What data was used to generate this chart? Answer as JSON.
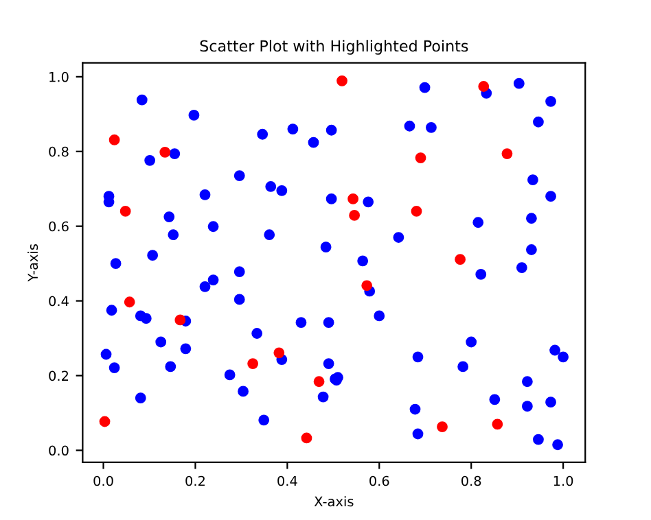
{
  "chart_data": {
    "type": "scatter",
    "title": "Scatter Plot with Highlighted Points",
    "xlabel": "X-axis",
    "ylabel": "Y-axis",
    "xlim": [
      -0.045,
      1.048
    ],
    "ylim": [
      -0.032,
      1.037
    ],
    "xticks": [
      {
        "value": 0,
        "label": "0.0"
      },
      {
        "value": 0.2,
        "label": "0.2"
      },
      {
        "value": 0.4,
        "label": "0.4"
      },
      {
        "value": 0.6,
        "label": "0.6"
      },
      {
        "value": 0.8,
        "label": "0.8"
      },
      {
        "value": 1.0,
        "label": "1.0"
      }
    ],
    "yticks": [
      {
        "value": 0,
        "label": "0.0"
      },
      {
        "value": 0.2,
        "label": "0.2"
      },
      {
        "value": 0.4,
        "label": "0.4"
      },
      {
        "value": 0.6,
        "label": "0.6"
      },
      {
        "value": 0.8,
        "label": "0.8"
      },
      {
        "value": 1.0,
        "label": "1.0"
      }
    ],
    "grid": false,
    "marker": "circle",
    "series": [
      {
        "color": "#0000ff",
        "x": [
          0.084,
          0.197,
          0.346,
          0.412,
          0.457,
          0.496,
          0.101,
          0.155,
          0.296,
          0.364,
          0.388,
          0.496,
          0.012,
          0.012,
          0.221,
          0.143,
          0.239,
          0.152,
          0.361,
          0.484,
          0.107,
          0.027,
          0.699,
          0.833,
          0.904,
          0.973,
          0.666,
          0.713,
          0.946,
          0.934,
          0.973,
          0.576,
          0.815,
          0.931,
          0.642,
          0.931,
          0.564,
          0.91,
          0.296,
          0.239,
          0.221,
          0.296,
          0.018,
          0.081,
          0.093,
          0.179,
          0.43,
          0.49,
          0.334,
          0.125,
          0.179,
          0.006,
          0.024,
          0.146,
          0.275,
          0.388,
          0.49,
          0.504,
          0.304,
          0.081,
          0.478,
          0.349,
          0.821,
          0.579,
          0.6,
          0.8,
          0.982,
          1.0,
          0.684,
          0.782,
          0.51,
          0.507,
          0.922,
          0.851,
          0.678,
          0.922,
          0.973,
          0.684,
          0.946,
          0.988
        ],
        "values": [
          0.938,
          0.897,
          0.846,
          0.86,
          0.824,
          0.857,
          0.776,
          0.794,
          0.735,
          0.706,
          0.695,
          0.673,
          0.68,
          0.665,
          0.684,
          0.625,
          0.599,
          0.577,
          0.577,
          0.544,
          0.522,
          0.5,
          0.971,
          0.956,
          0.982,
          0.934,
          0.868,
          0.864,
          0.879,
          0.724,
          0.68,
          0.665,
          0.61,
          0.621,
          0.57,
          0.537,
          0.507,
          0.489,
          0.478,
          0.456,
          0.438,
          0.404,
          0.375,
          0.36,
          0.353,
          0.346,
          0.342,
          0.342,
          0.313,
          0.29,
          0.272,
          0.257,
          0.221,
          0.224,
          0.202,
          0.243,
          0.232,
          0.191,
          0.158,
          0.14,
          0.143,
          0.081,
          0.471,
          0.426,
          0.36,
          0.29,
          0.268,
          0.25,
          0.25,
          0.224,
          0.195,
          0.188,
          0.184,
          0.136,
          0.11,
          0.118,
          0.129,
          0.044,
          0.029,
          0.015
        ]
      },
      {
        "color": "#ff0000",
        "x": [
          0.003,
          0.024,
          0.048,
          0.057,
          0.134,
          0.167,
          0.325,
          0.382,
          0.469,
          0.442,
          0.519,
          0.543,
          0.546,
          0.573,
          0.69,
          0.681,
          0.737,
          0.776,
          0.827,
          0.878,
          0.857
        ],
        "values": [
          0.077,
          0.831,
          0.64,
          0.397,
          0.798,
          0.349,
          0.232,
          0.261,
          0.184,
          0.033,
          0.989,
          0.673,
          0.629,
          0.441,
          0.783,
          0.64,
          0.063,
          0.511,
          0.974,
          0.794,
          0.07
        ]
      }
    ]
  }
}
